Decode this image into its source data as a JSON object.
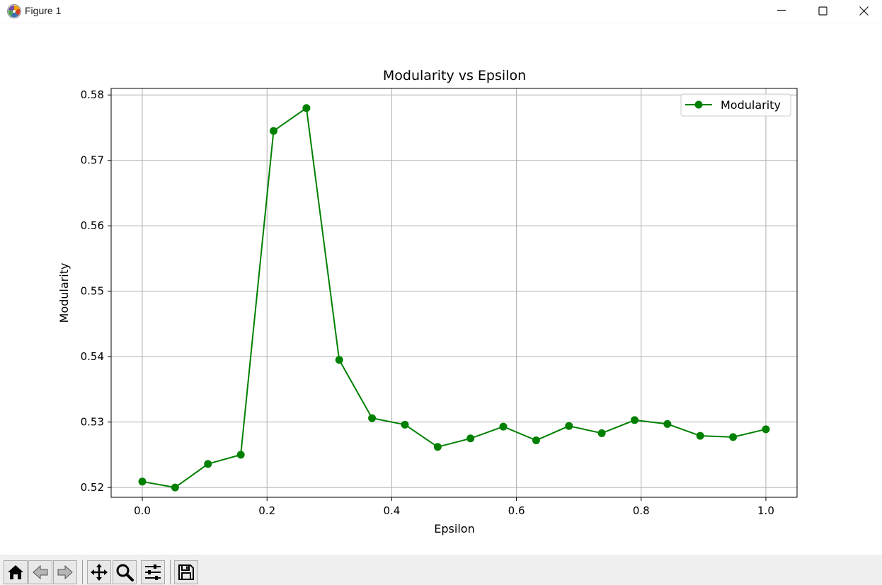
{
  "window": {
    "title": "Figure 1",
    "controls": [
      "minimize-icon",
      "maximize-icon",
      "close-icon"
    ]
  },
  "toolbar": {
    "buttons": [
      {
        "name": "home-button",
        "icon": "home-icon"
      },
      {
        "name": "back-button",
        "icon": "back-arrow-icon"
      },
      {
        "name": "forward-button",
        "icon": "forward-arrow-icon"
      },
      {
        "name": "pan-button",
        "icon": "move-icon"
      },
      {
        "name": "zoom-button",
        "icon": "magnifier-icon"
      },
      {
        "name": "configure-subplots-button",
        "icon": "sliders-icon"
      },
      {
        "name": "save-button",
        "icon": "floppy-disk-icon"
      }
    ]
  },
  "chart_data": {
    "type": "line",
    "title": "Modularity vs Epsilon",
    "xlabel": "Epsilon",
    "ylabel": "Modularity",
    "xlim": [
      -0.05,
      1.05
    ],
    "ylim": [
      0.5185,
      0.581
    ],
    "xticks": [
      0.0,
      0.2,
      0.4,
      0.6,
      0.8,
      1.0
    ],
    "xtick_labels": [
      "0.0",
      "0.2",
      "0.4",
      "0.6",
      "0.8",
      "1.0"
    ],
    "yticks": [
      0.52,
      0.53,
      0.54,
      0.55,
      0.56,
      0.57,
      0.58
    ],
    "ytick_labels": [
      "0.52",
      "0.53",
      "0.54",
      "0.55",
      "0.56",
      "0.57",
      "0.58"
    ],
    "grid": true,
    "legend_position": "top-right",
    "colors": {
      "line": "#008000"
    },
    "series": [
      {
        "name": "Modularity",
        "marker": "circle",
        "x": [
          0.0,
          0.0526,
          0.1053,
          0.1579,
          0.2105,
          0.2632,
          0.3158,
          0.3684,
          0.4211,
          0.4737,
          0.5263,
          0.5789,
          0.6316,
          0.6842,
          0.7368,
          0.7895,
          0.8421,
          0.8947,
          0.9474,
          1.0
        ],
        "y": [
          0.5209,
          0.52,
          0.5236,
          0.525,
          0.5745,
          0.578,
          0.5395,
          0.5306,
          0.5296,
          0.5262,
          0.5275,
          0.5293,
          0.5272,
          0.5294,
          0.5283,
          0.5303,
          0.5297,
          0.5279,
          0.5277,
          0.5289
        ]
      }
    ]
  }
}
